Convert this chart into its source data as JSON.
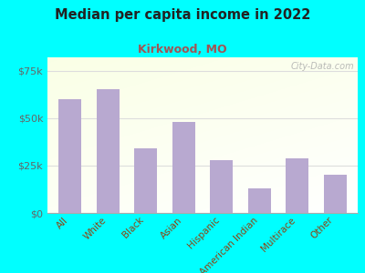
{
  "title": "Median per capita income in 2022",
  "subtitle": "Kirkwood, MO",
  "categories": [
    "All",
    "White",
    "Black",
    "Asian",
    "Hispanic",
    "American Indian",
    "Multirace",
    "Other"
  ],
  "values": [
    60000,
    65000,
    34000,
    48000,
    28000,
    13000,
    29000,
    20000
  ],
  "bar_color": "#b8a9d0",
  "background_color": "#00FFFF",
  "title_color": "#222222",
  "subtitle_color": "#a05555",
  "tick_color": "#666666",
  "xtick_color": "#8B4513",
  "ylim": [
    0,
    82000
  ],
  "yticks": [
    0,
    25000,
    50000,
    75000
  ],
  "ytick_labels": [
    "$0",
    "$25k",
    "$50k",
    "$75k"
  ],
  "watermark": "City-Data.com",
  "grid_color": "#dddddd"
}
